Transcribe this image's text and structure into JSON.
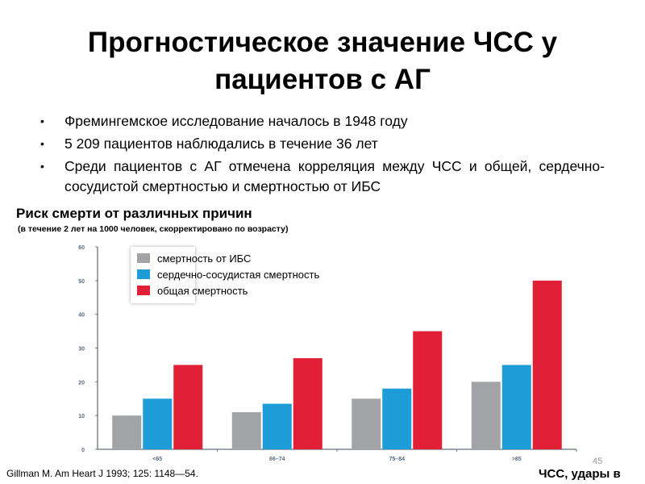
{
  "slide": {
    "title_line1": "Прогностическое значение ЧСС у",
    "title_line2": "пациентов с АГ",
    "bullets": [
      "Фремингемское исследование началось в 1948 году",
      "5 209 пациентов наблюдались в течение 36 лет",
      "Среди пациентов с АГ отмечена корреляция между ЧСС и общей, сердечно-сосудистой смертностью и смертностью от ИБС"
    ],
    "bullet_symbol": "•",
    "citation": "Gillman M. Am Heart J 1993; 125: 1148—54.",
    "page_number": "45"
  },
  "chart_data": {
    "type": "bar",
    "title": "Риск смерти от различных причин",
    "subtitle": "(в течение 2 лет на 1000 человек, скорректировано по возрасту)",
    "xlabel": "ЧСС, удары в",
    "ylabel": "",
    "ylim": [
      0,
      60
    ],
    "yticks": [
      0,
      10,
      20,
      30,
      40,
      50,
      60
    ],
    "categories": [
      "<65",
      "66–74",
      "75–84",
      ">85"
    ],
    "series": [
      {
        "name": "смертность от ИБС",
        "color": "#a1a3a6",
        "values": [
          10,
          11,
          15,
          20
        ]
      },
      {
        "name": "сердечно-сосудистая смертность",
        "color": "#1e9cd8",
        "values": [
          15,
          13.5,
          18,
          25
        ]
      },
      {
        "name": "общая смертность",
        "color": "#e11f36",
        "values": [
          25,
          27,
          35,
          50
        ]
      }
    ],
    "grid": false,
    "legend_position": "top-left"
  }
}
